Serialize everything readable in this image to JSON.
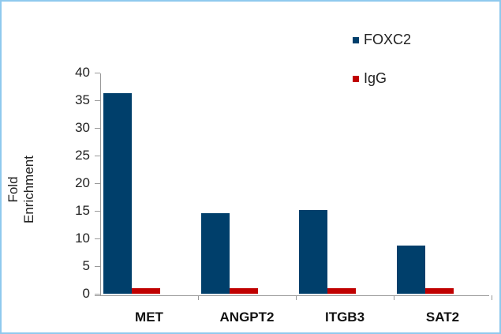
{
  "chart_data": {
    "type": "bar",
    "title": "",
    "xlabel": "",
    "ylabel": "Fold Enrichment",
    "ylim": [
      0,
      40
    ],
    "yticks": [
      0,
      5,
      10,
      15,
      20,
      25,
      30,
      35,
      40
    ],
    "categories": [
      "MET",
      "ANGPT2",
      "ITGB3",
      "SAT2"
    ],
    "series": [
      {
        "name": "FOXC2",
        "color": "#003f6b",
        "values": [
          36.3,
          14.6,
          15.1,
          8.7
        ]
      },
      {
        "name": "IgG",
        "color": "#c00000",
        "values": [
          1.0,
          1.0,
          1.0,
          1.0
        ]
      }
    ],
    "legend_position": "top-right",
    "grid": false
  },
  "labels": {
    "ylabel": "Fold Enrichment",
    "yticks": [
      "0",
      "5",
      "10",
      "15",
      "20",
      "25",
      "30",
      "35",
      "40"
    ],
    "categories": [
      "MET",
      "ANGPT2",
      "ITGB3",
      "SAT2"
    ],
    "legend": [
      "FOXC2",
      "IgG"
    ]
  }
}
